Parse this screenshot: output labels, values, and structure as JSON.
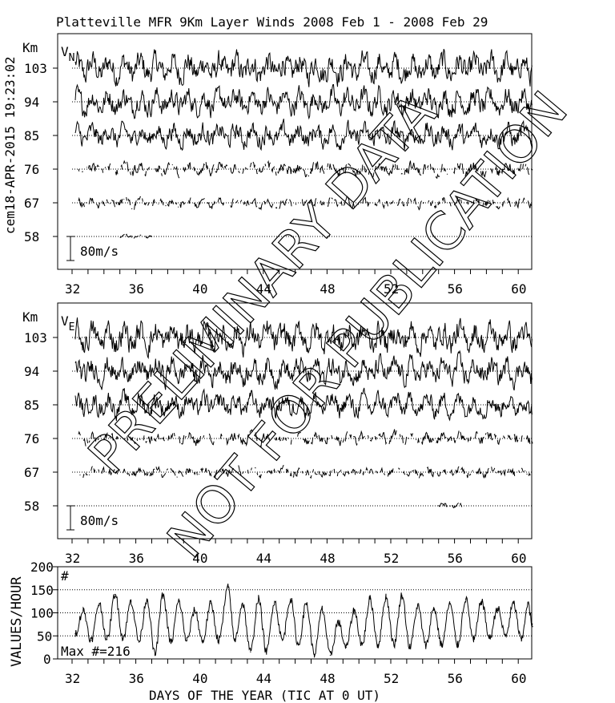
{
  "title": "Platteville MFR 9Km Layer Winds 2008 Feb  1 - 2008 Feb 29",
  "timestamp_label": "cem18-APR-2015 19:23:02",
  "watermark": [
    "PRELIMINARY DATA",
    "NOT FOR PUBLICATION"
  ],
  "chart_data": [
    {
      "type": "line",
      "component_label": "V",
      "component_subscript": "N",
      "ylabel": "Km",
      "y_ticks": [
        103,
        94,
        85,
        76,
        67,
        58
      ],
      "x_ticks": [
        32,
        36,
        40,
        44,
        48,
        52,
        56,
        60
      ],
      "xlim": [
        31,
        61
      ],
      "scale_bar_label": "80m/s",
      "scale_bar_value": 80,
      "grid": "dotted horizontal at each altitude",
      "series": [
        {
          "altitude": 103,
          "coverage": [
            [
              32.2,
              60.9
            ]
          ],
          "amplitude_ms": 45
        },
        {
          "altitude": 94,
          "coverage": [
            [
              32.2,
              60.9
            ]
          ],
          "amplitude_ms": 40
        },
        {
          "altitude": 85,
          "coverage": [
            [
              32.2,
              60.9
            ]
          ],
          "amplitude_ms": 35
        },
        {
          "altitude": 76,
          "coverage": [
            [
              32.4,
              60.9
            ]
          ],
          "amplitude_ms": 20,
          "sparse": true
        },
        {
          "altitude": 67,
          "coverage": [
            [
              32.4,
              60.9
            ]
          ],
          "amplitude_ms": 15,
          "sparse": true
        },
        {
          "altitude": 58,
          "coverage": [
            [
              35.0,
              37.0
            ]
          ],
          "amplitude_ms": 5,
          "sparse": true
        }
      ]
    },
    {
      "type": "line",
      "component_label": "V",
      "component_subscript": "E",
      "ylabel": "Km",
      "y_ticks": [
        103,
        94,
        85,
        76,
        67,
        58
      ],
      "x_ticks": [
        32,
        36,
        40,
        44,
        48,
        52,
        56,
        60
      ],
      "xlim": [
        31,
        61
      ],
      "scale_bar_label": "80m/s",
      "scale_bar_value": 80,
      "grid": "dotted horizontal at each altitude",
      "series": [
        {
          "altitude": 103,
          "coverage": [
            [
              32.2,
              60.9
            ]
          ],
          "amplitude_ms": 45
        },
        {
          "altitude": 94,
          "coverage": [
            [
              32.2,
              60.9
            ]
          ],
          "amplitude_ms": 40
        },
        {
          "altitude": 85,
          "coverage": [
            [
              32.2,
              60.9
            ]
          ],
          "amplitude_ms": 35
        },
        {
          "altitude": 76,
          "coverage": [
            [
              32.4,
              60.9
            ]
          ],
          "amplitude_ms": 20,
          "sparse": true
        },
        {
          "altitude": 67,
          "coverage": [
            [
              32.4,
              60.9
            ]
          ],
          "amplitude_ms": 15,
          "sparse": true
        },
        {
          "altitude": 58,
          "coverage": [
            [
              55.0,
              56.5
            ]
          ],
          "amplitude_ms": 8,
          "sparse": true
        }
      ]
    },
    {
      "type": "line",
      "series_label": "#",
      "ylabel": "VALUES/HOUR",
      "xlabel": "DAYS OF THE YEAR (TIC AT 0 UT)",
      "y_ticks": [
        0,
        50,
        100,
        150,
        200
      ],
      "ylim": [
        0,
        200
      ],
      "x_ticks": [
        32,
        36,
        40,
        44,
        48,
        52,
        56,
        60
      ],
      "xlim": [
        31,
        61
      ],
      "annotation": "Max #=216",
      "grid": "dotted at 50, 100, 150",
      "x": [
        32.2,
        32.7,
        33.2,
        33.7,
        34.2,
        34.7,
        35.2,
        35.7,
        36.2,
        36.7,
        37.2,
        37.7,
        38.2,
        38.7,
        39.2,
        39.7,
        40.2,
        40.7,
        41.2,
        41.8,
        42.2,
        42.7,
        43.2,
        43.7,
        44.2,
        44.7,
        45.2,
        45.7,
        46.2,
        46.7,
        47.2,
        47.7,
        48.2,
        48.7,
        49.2,
        49.7,
        50.2,
        50.7,
        51.2,
        51.7,
        52.2,
        52.7,
        53.2,
        53.7,
        54.2,
        54.7,
        55.2,
        55.7,
        56.2,
        56.7,
        57.2,
        57.7,
        58.2,
        58.7,
        59.2,
        59.7,
        60.2,
        60.6,
        60.9
      ],
      "values": [
        55,
        105,
        40,
        120,
        42,
        140,
        45,
        125,
        38,
        130,
        10,
        138,
        35,
        125,
        40,
        105,
        38,
        120,
        40,
        155,
        40,
        120,
        15,
        130,
        15,
        125,
        40,
        130,
        30,
        120,
        10,
        108,
        8,
        80,
        25,
        105,
        30,
        130,
        30,
        135,
        30,
        138,
        25,
        115,
        28,
        110,
        30,
        120,
        30,
        130,
        40,
        125,
        45,
        110,
        50,
        120,
        40,
        120,
        70
      ]
    }
  ]
}
